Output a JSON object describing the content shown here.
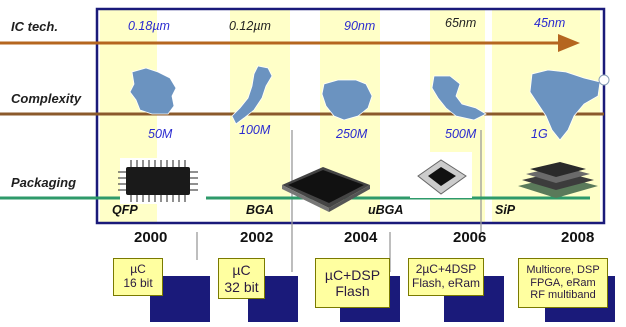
{
  "rows": {
    "ic_tech": "IC tech.",
    "complexity": "Complexity",
    "packaging": "Packaging"
  },
  "tech_nodes": [
    "0.18µm",
    "0.12µm",
    "90nm",
    "65nm",
    "45nm"
  ],
  "complexity": [
    "50M",
    "100M",
    "250M",
    "500M",
    "1G"
  ],
  "map_icons": [
    "france-map-icon",
    "japan-map-icon",
    "north-america-map-icon",
    "southeast-asia-map-icon",
    "india-map-icon"
  ],
  "packages": [
    "QFP",
    "BGA",
    "uBGA",
    "",
    "SiP"
  ],
  "package_icons": [
    "qfp-chip-icon",
    "bga-chip-icon",
    "ubga-chip-icon",
    "small-bga-chip-icon",
    "sip-stack-icon"
  ],
  "years": [
    "2000",
    "2002",
    "2004",
    "2006",
    "2008"
  ],
  "products": [
    [
      "µC",
      "16 bit"
    ],
    [
      "µC",
      "32 bit"
    ],
    [
      "µC+DSP",
      "Flash"
    ],
    [
      "2µC+4DSP",
      "Flash, eRam"
    ],
    [
      "Multicore, DSP",
      "FPGA, eRam",
      "RF multiband"
    ]
  ],
  "colors": {
    "frame": "#1a1a7a",
    "highlight": "#ffffc8",
    "ic_arrow": "#b5661f",
    "complexity_line": "#8b5a2b",
    "packaging_line": "#2e9a6a",
    "node_text": "#2a2ad0",
    "map": "#6b93c0",
    "box_fill": "#ffffa0",
    "box_shadow": "#1a1a7a"
  }
}
